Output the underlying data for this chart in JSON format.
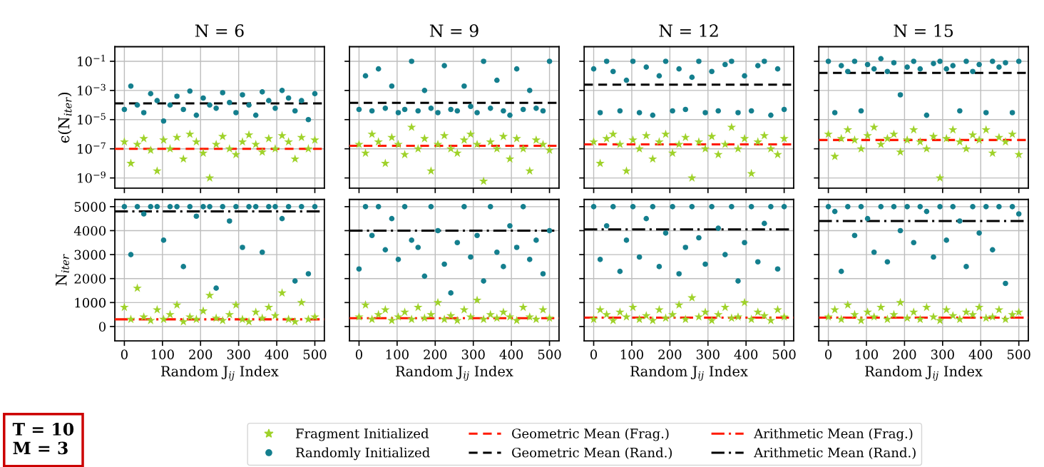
{
  "chart_data": [
    {
      "type": "scatter",
      "title": "N = 6",
      "ylabel": "ϵ(N$_{iter}$)",
      "log": "y",
      "grid": true,
      "legend": "bottom",
      "tick_labels": "y",
      "xlim": [
        -25,
        525
      ],
      "xticks": [
        0,
        100,
        200,
        300,
        400,
        500
      ],
      "ylim": [
        2e-10,
        1
      ],
      "yticks": [
        {
          "value": 1e-09,
          "label": "10$^{−9}$"
        },
        {
          "value": 1e-07,
          "label": "10$^{−7}$"
        },
        {
          "value": 1e-05,
          "label": "10$^{−5}$"
        },
        {
          "value": 0.001,
          "label": "10$^{−3}$"
        },
        {
          "value": 0.1,
          "label": "10$^{−1}$"
        }
      ],
      "x": [
        0,
        17,
        34,
        51,
        69,
        86,
        103,
        120,
        138,
        155,
        172,
        189,
        207,
        224,
        241,
        258,
        276,
        293,
        310,
        327,
        345,
        362,
        379,
        396,
        414,
        431,
        448,
        465,
        483,
        500
      ],
      "series": [
        {
          "name": "Fragment Initialized",
          "color": "#9fd22a",
          "marker": "star",
          "values": [
            3e-07,
            1e-08,
            2e-07,
            5e-07,
            8e-08,
            3e-09,
            4e-07,
            1e-07,
            6e-07,
            2e-08,
            1e-06,
            3e-07,
            5e-08,
            1e-09,
            2e-07,
            7e-07,
            1e-07,
            4e-08,
            3e-07,
            9e-07,
            2e-07,
            6e-08,
            5e-07,
            1e-07,
            8e-07,
            3e-07,
            2e-08,
            6e-07,
            1e-07,
            4e-07
          ]
        },
        {
          "name": "Randomly Initialized",
          "color": "#147f8e",
          "marker": "circle",
          "values": [
            5e-05,
            0.002,
            0.0001,
            3e-05,
            0.0006,
            0.0002,
            8e-06,
            0.0001,
            0.0004,
            5e-05,
            0.0009,
            2e-05,
            0.0003,
            0.0001,
            6e-05,
            0.0007,
            0.00015,
            3e-05,
            0.0005,
            0.0001,
            2e-05,
            0.0008,
            0.0002,
            6e-05,
            0.001,
            0.0003,
            4e-05,
            0.0002,
            1e-05,
            0.0006
          ]
        }
      ],
      "ref_lines": [
        {
          "axis": "y",
          "value": 1e-07,
          "label": "Geometric Mean (Frag.)",
          "color": "#ff1a00",
          "line_style": "dashed"
        },
        {
          "axis": "y",
          "value": 0.00013,
          "label": "Geometric Mean (Rand.)",
          "color": "#000000",
          "line_style": "dashed"
        }
      ]
    },
    {
      "type": "scatter",
      "title": "N = 9",
      "log": "y",
      "grid": true,
      "tick_labels": false,
      "xlim": [
        -25,
        525
      ],
      "xticks": [
        0,
        100,
        200,
        300,
        400,
        500
      ],
      "ylim": [
        2e-10,
        1
      ],
      "yticks": [
        1e-09,
        1e-07,
        1e-05,
        0.001,
        0.1
      ],
      "x": [
        0,
        17,
        34,
        51,
        69,
        86,
        103,
        120,
        138,
        155,
        172,
        189,
        207,
        224,
        241,
        258,
        276,
        293,
        310,
        327,
        345,
        362,
        379,
        396,
        414,
        431,
        448,
        465,
        483,
        500
      ],
      "series": [
        {
          "color": "#9fd22a",
          "marker": "star",
          "values": [
            2e-07,
            5e-08,
            1e-06,
            3e-07,
            1e-08,
            6e-07,
            2e-07,
            4e-08,
            3e-06,
            1e-07,
            5e-07,
            3e-09,
            2e-07,
            8e-07,
            1e-07,
            5e-08,
            4e-07,
            1e-06,
            2e-07,
            6e-10,
            3e-07,
            1e-07,
            7e-07,
            2e-08,
            5e-07,
            1e-07,
            3e-09,
            4e-07,
            2e-07,
            8e-08
          ]
        },
        {
          "color": "#147f8e",
          "marker": "circle",
          "values": [
            5e-05,
            0.01,
            4e-05,
            0.03,
            6e-05,
            0.002,
            3e-05,
            5e-05,
            0.1,
            4e-05,
            0.001,
            6e-05,
            3e-05,
            0.05,
            5e-05,
            4e-05,
            0.002,
            8e-05,
            3e-05,
            0.1,
            6e-05,
            0.005,
            4e-05,
            2e-05,
            0.03,
            5e-05,
            0.001,
            6e-05,
            4e-05,
            0.1
          ]
        }
      ],
      "ref_lines": [
        {
          "axis": "y",
          "value": 1.6e-07,
          "color": "#ff1a00",
          "line_style": "dashed"
        },
        {
          "axis": "y",
          "value": 0.00014,
          "color": "#000000",
          "line_style": "dashed"
        }
      ]
    },
    {
      "type": "scatter",
      "title": "N = 12",
      "log": "y",
      "grid": true,
      "tick_labels": false,
      "xlim": [
        -25,
        525
      ],
      "xticks": [
        0,
        100,
        200,
        300,
        400,
        500
      ],
      "ylim": [
        2e-10,
        1
      ],
      "yticks": [
        1e-09,
        1e-07,
        1e-05,
        0.001,
        0.1
      ],
      "x": [
        0,
        17,
        34,
        51,
        69,
        86,
        103,
        120,
        138,
        155,
        172,
        189,
        207,
        224,
        241,
        258,
        276,
        293,
        310,
        327,
        345,
        362,
        379,
        396,
        414,
        431,
        448,
        465,
        483,
        500
      ],
      "series": [
        {
          "color": "#9fd22a",
          "marker": "star",
          "values": [
            3e-07,
            1e-08,
            5e-07,
            1e-06,
            2e-07,
            3e-09,
            4e-07,
            1e-07,
            8e-07,
            2e-08,
            3e-07,
            1e-06,
            5e-08,
            2e-07,
            6e-07,
            1e-09,
            3e-07,
            1e-07,
            7e-07,
            4e-08,
            2e-07,
            3e-06,
            1e-07,
            5e-07,
            2e-09,
            3e-07,
            8e-07,
            1e-07,
            4e-08,
            5e-07
          ]
        },
        {
          "color": "#147f8e",
          "marker": "circle",
          "values": [
            0.03,
            3e-05,
            0.1,
            0.02,
            4e-05,
            0.005,
            0.1,
            3e-05,
            0.04,
            2e-05,
            0.01,
            0.1,
            4e-05,
            0.03,
            5e-05,
            0.008,
            0.1,
            3e-05,
            0.02,
            4e-05,
            0.06,
            0.1,
            3e-05,
            0.01,
            4e-05,
            0.05,
            0.1,
            2e-05,
            0.03,
            5e-05
          ]
        }
      ],
      "ref_lines": [
        {
          "axis": "y",
          "value": 2e-07,
          "color": "#ff1a00",
          "line_style": "dashed"
        },
        {
          "axis": "y",
          "value": 0.0025,
          "color": "#000000",
          "line_style": "dashed"
        }
      ]
    },
    {
      "type": "scatter",
      "title": "N = 15",
      "log": "y",
      "grid": true,
      "tick_labels": false,
      "xlim": [
        -25,
        525
      ],
      "xticks": [
        0,
        100,
        200,
        300,
        400,
        500
      ],
      "ylim": [
        2e-10,
        1
      ],
      "yticks": [
        1e-09,
        1e-07,
        1e-05,
        0.001,
        0.1
      ],
      "x": [
        0,
        17,
        34,
        51,
        69,
        86,
        103,
        120,
        138,
        155,
        172,
        189,
        207,
        224,
        241,
        258,
        276,
        293,
        310,
        327,
        345,
        362,
        379,
        396,
        414,
        431,
        448,
        465,
        483,
        500
      ],
      "series": [
        {
          "color": "#9fd22a",
          "marker": "star",
          "values": [
            1e-06,
            3e-08,
            5e-07,
            2e-06,
            4e-07,
            1e-07,
            8e-07,
            3e-06,
            2e-07,
            5e-07,
            1e-06,
            6e-08,
            4e-07,
            2e-06,
            3e-07,
            1e-07,
            7e-07,
            1e-09,
            5e-07,
            2e-06,
            3e-07,
            1e-07,
            9e-07,
            4e-07,
            2e-06,
            5e-08,
            6e-07,
            3e-07,
            1e-06,
            4e-08
          ]
        },
        {
          "color": "#147f8e",
          "marker": "circle",
          "values": [
            0.1,
            3e-05,
            0.05,
            0.02,
            0.1,
            4e-05,
            0.06,
            0.03,
            0.15,
            0.02,
            0.08,
            0.0005,
            0.04,
            0.1,
            0.03,
            2e-05,
            0.07,
            0.1,
            0.03,
            0.05,
            4e-05,
            0.1,
            0.02,
            0.06,
            3e-05,
            0.1,
            0.04,
            0.08,
            3e-05,
            0.1
          ]
        }
      ],
      "ref_lines": [
        {
          "axis": "y",
          "value": 4e-07,
          "color": "#ff1a00",
          "line_style": "dashed"
        },
        {
          "axis": "y",
          "value": 0.016,
          "color": "#000000",
          "line_style": "dashed"
        }
      ]
    },
    {
      "type": "scatter",
      "ylabel": "N$_{iter}$",
      "xlabel": "Random J$_{ij}$ Index",
      "grid": true,
      "legend": "bottom",
      "annotations": [
        "T = 10",
        "M = 3"
      ],
      "xlim": [
        -25,
        525
      ],
      "xticks": [
        0,
        100,
        200,
        300,
        400,
        500
      ],
      "ylim": [
        -600,
        5300
      ],
      "yticks": [
        0,
        1000,
        2000,
        3000,
        4000,
        5000
      ],
      "x": [
        0,
        17,
        34,
        51,
        69,
        86,
        103,
        120,
        138,
        155,
        172,
        189,
        207,
        224,
        241,
        258,
        276,
        293,
        310,
        327,
        345,
        362,
        379,
        396,
        414,
        431,
        448,
        465,
        483,
        500
      ],
      "series": [
        {
          "color": "#9fd22a",
          "marker": "star",
          "values": [
            800,
            300,
            1600,
            400,
            250,
            700,
            300,
            500,
            900,
            200,
            400,
            300,
            650,
            1300,
            350,
            250,
            500,
            900,
            300,
            200,
            600,
            350,
            800,
            450,
            1400,
            300,
            200,
            1000,
            300,
            400
          ]
        },
        {
          "color": "#147f8e",
          "marker": "circle",
          "values": [
            5000,
            3000,
            5000,
            4700,
            5000,
            5000,
            3600,
            5000,
            5000,
            2500,
            5000,
            4600,
            5000,
            5000,
            1600,
            5000,
            4400,
            5000,
            3300,
            5000,
            5000,
            3100,
            5000,
            5000,
            4500,
            5000,
            1900,
            5000,
            2200,
            5000
          ]
        }
      ],
      "ref_lines": [
        {
          "axis": "y",
          "value": 300,
          "label": "Arithmetic Mean (Frag.)",
          "color": "#ff1a00",
          "line_style": "dashdot"
        },
        {
          "axis": "y",
          "value": 4800,
          "label": "Arithmetic Mean (Rand.)",
          "color": "#000000",
          "line_style": "dashdot"
        }
      ]
    },
    {
      "type": "scatter",
      "xlabel": "Random J$_{ij}$ Index",
      "grid": true,
      "tick_labels": "x",
      "xlim": [
        -25,
        525
      ],
      "xticks": [
        0,
        100,
        200,
        300,
        400,
        500
      ],
      "ylim": [
        -600,
        5300
      ],
      "yticks": [
        0,
        1000,
        2000,
        3000,
        4000,
        5000
      ],
      "x": [
        0,
        17,
        34,
        51,
        69,
        86,
        103,
        120,
        138,
        155,
        172,
        189,
        207,
        224,
        241,
        258,
        276,
        293,
        310,
        327,
        345,
        362,
        379,
        396,
        414,
        431,
        448,
        465,
        483,
        500
      ],
      "series": [
        {
          "color": "#9fd22a",
          "marker": "star",
          "values": [
            400,
            900,
            300,
            500,
            700,
            250,
            400,
            600,
            300,
            800,
            350,
            500,
            1000,
            300,
            450,
            250,
            700,
            400,
            1100,
            300,
            500,
            350,
            600,
            400,
            250,
            800,
            400,
            300,
            700,
            350
          ]
        },
        {
          "color": "#147f8e",
          "marker": "circle",
          "values": [
            2400,
            5000,
            3800,
            5000,
            3200,
            4500,
            2800,
            5000,
            3600,
            3300,
            2100,
            5000,
            4000,
            2600,
            1400,
            3500,
            5000,
            2900,
            3800,
            1900,
            5000,
            3100,
            2500,
            4200,
            3300,
            5000,
            2800,
            3600,
            2200,
            4000
          ]
        }
      ],
      "ref_lines": [
        {
          "axis": "y",
          "value": 350,
          "color": "#ff1a00",
          "line_style": "dashdot"
        },
        {
          "axis": "y",
          "value": 4000,
          "color": "#000000",
          "line_style": "dashdot"
        }
      ]
    },
    {
      "type": "scatter",
      "xlabel": "Random J$_{ij}$ Index",
      "grid": true,
      "tick_labels": "x",
      "xlim": [
        -25,
        525
      ],
      "xticks": [
        0,
        100,
        200,
        300,
        400,
        500
      ],
      "ylim": [
        -600,
        5300
      ],
      "yticks": [
        0,
        1000,
        2000,
        3000,
        4000,
        5000
      ],
      "x": [
        0,
        17,
        34,
        51,
        69,
        86,
        103,
        120,
        138,
        155,
        172,
        189,
        207,
        224,
        241,
        258,
        276,
        293,
        310,
        327,
        345,
        362,
        379,
        396,
        414,
        431,
        448,
        465,
        483,
        500
      ],
      "series": [
        {
          "color": "#9fd22a",
          "marker": "star",
          "values": [
            300,
            700,
            500,
            250,
            600,
            400,
            800,
            300,
            450,
            250,
            700,
            350,
            500,
            900,
            300,
            1200,
            400,
            600,
            250,
            500,
            800,
            350,
            400,
            1000,
            300,
            600,
            450,
            250,
            700,
            400
          ]
        },
        {
          "color": "#147f8e",
          "marker": "circle",
          "values": [
            5000,
            2800,
            4200,
            5000,
            2300,
            3600,
            5000,
            2900,
            4500,
            5000,
            2500,
            3900,
            5000,
            2200,
            3300,
            5000,
            3700,
            2600,
            5000,
            4100,
            3000,
            5000,
            1900,
            3500,
            5000,
            2700,
            4300,
            5000,
            2400,
            5000
          ]
        }
      ],
      "ref_lines": [
        {
          "axis": "y",
          "value": 370,
          "color": "#ff1a00",
          "line_style": "dashdot"
        },
        {
          "axis": "y",
          "value": 4050,
          "color": "#000000",
          "line_style": "dashdot"
        }
      ]
    },
    {
      "type": "scatter",
      "xlabel": "Random J$_{ij}$ Index",
      "grid": true,
      "tick_labels": "x",
      "xlim": [
        -25,
        525
      ],
      "xticks": [
        0,
        100,
        200,
        300,
        400,
        500
      ],
      "ylim": [
        -600,
        5300
      ],
      "yticks": [
        0,
        1000,
        2000,
        3000,
        4000,
        5000
      ],
      "x": [
        0,
        17,
        34,
        51,
        69,
        86,
        103,
        120,
        138,
        155,
        172,
        189,
        207,
        224,
        241,
        258,
        276,
        293,
        310,
        327,
        345,
        362,
        379,
        396,
        414,
        431,
        448,
        465,
        483,
        500
      ],
      "series": [
        {
          "color": "#9fd22a",
          "marker": "star",
          "values": [
            400,
            700,
            300,
            900,
            500,
            250,
            600,
            400,
            800,
            300,
            500,
            1000,
            350,
            600,
            300,
            800,
            400,
            250,
            700,
            450,
            300,
            600,
            500,
            800,
            350,
            400,
            700,
            300,
            500,
            600
          ]
        },
        {
          "color": "#147f8e",
          "marker": "circle",
          "values": [
            5000,
            4800,
            2300,
            5000,
            3800,
            5000,
            4500,
            3100,
            5000,
            2700,
            5000,
            4000,
            5000,
            3500,
            5000,
            4800,
            2900,
            5000,
            3600,
            5000,
            4400,
            2500,
            5000,
            3900,
            5000,
            3200,
            5000,
            1800,
            5000,
            4700
          ]
        }
      ],
      "ref_lines": [
        {
          "axis": "y",
          "value": 370,
          "color": "#ff1a00",
          "line_style": "dashdot"
        },
        {
          "axis": "y",
          "value": 4400,
          "color": "#000000",
          "line_style": "dashdot"
        }
      ]
    }
  ]
}
